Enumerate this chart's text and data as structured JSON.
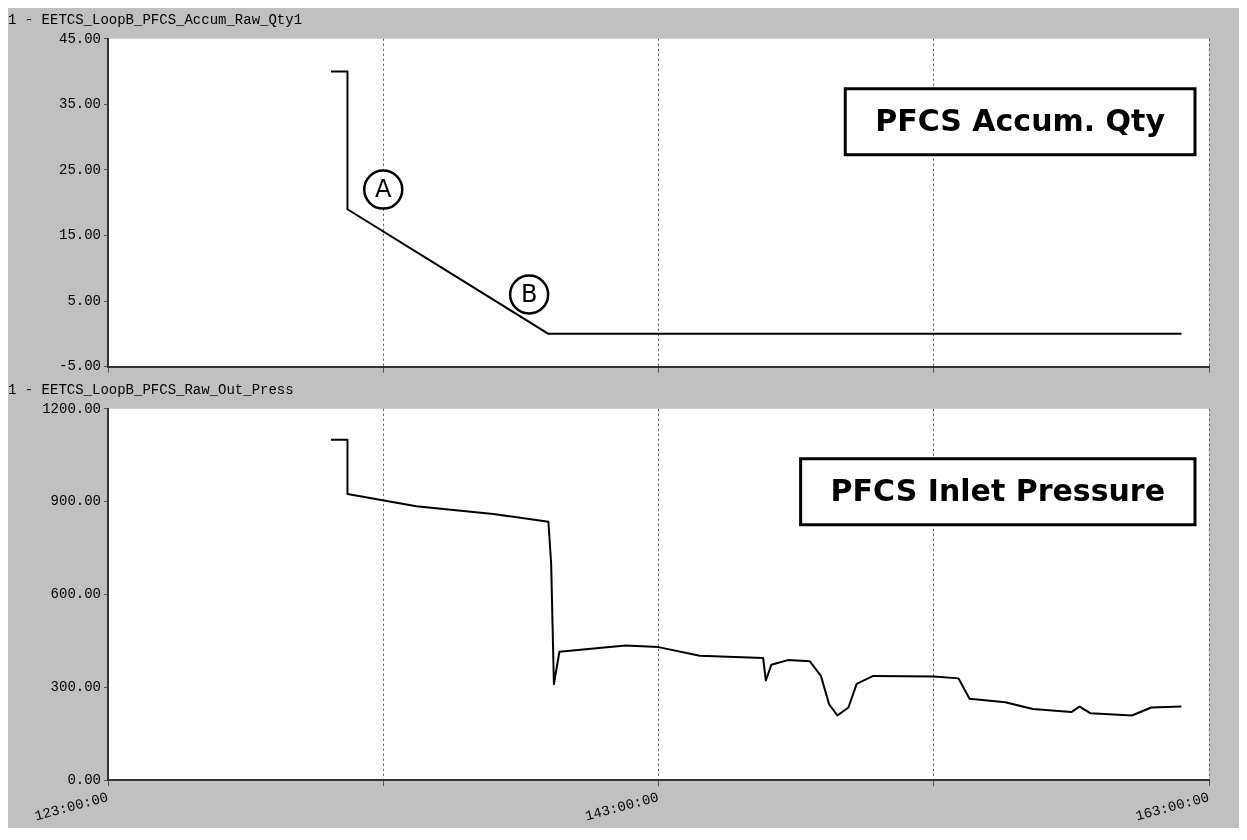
{
  "chart_data": [
    {
      "type": "line",
      "title": "1 - EETCS_LoopB_PFCS_Accum_Raw_Qty1",
      "x": [
        131.1,
        131.7,
        131.7,
        139.0,
        162.0
      ],
      "series": [
        {
          "color": "#000000",
          "values": [
            40,
            40,
            19,
            0,
            0
          ]
        }
      ],
      "xlim": [
        123,
        163
      ],
      "xticks": [
        123,
        133,
        143,
        153,
        163
      ],
      "ylim": [
        -5,
        45
      ],
      "yticks": [
        {
          "value": -5,
          "label": "-5.00"
        },
        {
          "value": 5,
          "label": "5.00"
        },
        {
          "value": 15,
          "label": "15.00"
        },
        {
          "value": 25,
          "label": "25.00"
        },
        {
          "value": 35,
          "label": "35.00"
        },
        {
          "value": 45,
          "label": "45.00"
        }
      ],
      "grid": "x",
      "tick_labels": "y",
      "annotations": [
        "PFCS Accum. Qty",
        {
          "text": "A",
          "x": 133.0,
          "y": 22
        },
        {
          "text": "B",
          "x": 138.3,
          "y": 6
        }
      ]
    },
    {
      "type": "line",
      "title": "1 - EETCS_LoopB_PFCS_Raw_Out_Press",
      "x": [
        131.1,
        131.7,
        131.7,
        134.2,
        137.0,
        139.0,
        139.1,
        139.2,
        139.4,
        141.8,
        143.0,
        144.5,
        146.8,
        146.9,
        147.1,
        147.7,
        148.5,
        148.9,
        149.2,
        149.5,
        149.9,
        150.2,
        150.8,
        153.0,
        153.9,
        154.3,
        155.6,
        156.6,
        158.0,
        158.3,
        158.7,
        160.2,
        160.9,
        162.0
      ],
      "series": [
        {
          "color": "#000000",
          "values": [
            1100,
            1100,
            925,
            885,
            860,
            835,
            700,
            310,
            415,
            435,
            430,
            402,
            395,
            322,
            373,
            388,
            384,
            337,
            245,
            209,
            235,
            311,
            337,
            335,
            329,
            263,
            252,
            230,
            220,
            238,
            216,
            209,
            235,
            238
          ]
        }
      ],
      "xlim": [
        123,
        163
      ],
      "xticks": [
        {
          "value": 123,
          "label": "123:00:00"
        },
        {
          "value": 133,
          "label": null
        },
        {
          "value": 143,
          "label": "143:00:00"
        },
        {
          "value": 153,
          "label": null
        },
        {
          "value": 163,
          "label": "163:00:00"
        }
      ],
      "ylim": [
        0,
        1200
      ],
      "yticks": [
        {
          "value": 0,
          "label": "0.00"
        },
        {
          "value": 300,
          "label": "300.00"
        },
        {
          "value": 600,
          "label": "600.00"
        },
        {
          "value": 900,
          "label": "900.00"
        },
        {
          "value": 1200,
          "label": "1200.00"
        }
      ],
      "grid": "x",
      "annotations": [
        "PFCS Inlet Pressure"
      ]
    }
  ]
}
